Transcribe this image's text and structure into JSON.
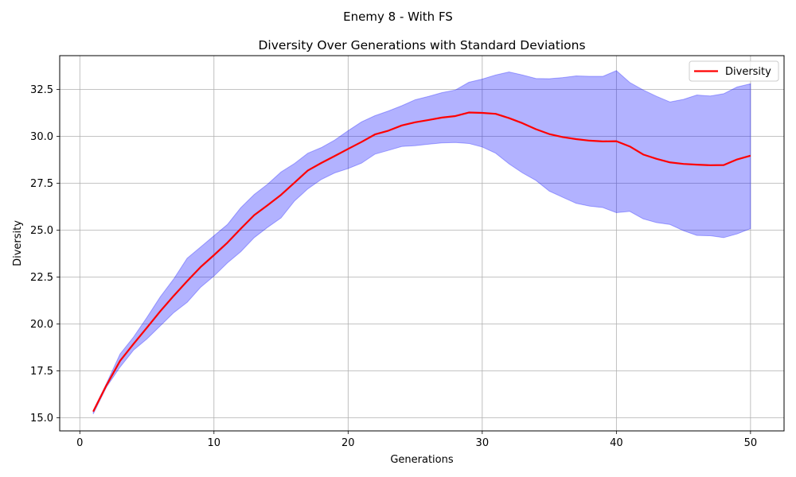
{
  "figure": {
    "suptitle": "Enemy 8 - With FS"
  },
  "colors": {
    "mean_line": "#ff0000",
    "std_band": "#0000ff",
    "grid": "#b0b0b0",
    "axes": "#000000"
  },
  "chart_data": {
    "type": "line",
    "title": "Diversity Over Generations with Standard Deviations",
    "xlabel": "Generations",
    "ylabel": "Diversity",
    "xlim": [
      -1.5,
      52.5
    ],
    "ylim": [
      14.3,
      34.3
    ],
    "xticks": [
      0,
      10,
      20,
      30,
      40,
      50
    ],
    "yticks": [
      15.0,
      17.5,
      20.0,
      22.5,
      25.0,
      27.5,
      30.0,
      32.5
    ],
    "xtick_labels": [
      "0",
      "10",
      "20",
      "30",
      "40",
      "50"
    ],
    "ytick_labels": [
      "15.0",
      "17.5",
      "20.0",
      "22.5",
      "25.0",
      "27.5",
      "30.0",
      "32.5"
    ],
    "grid": true,
    "legend": {
      "placement": "top-right",
      "entries": [
        "Diversity"
      ]
    },
    "x": [
      1,
      2,
      3,
      4,
      5,
      6,
      7,
      8,
      9,
      10,
      11,
      12,
      13,
      14,
      15,
      16,
      17,
      18,
      19,
      20,
      21,
      22,
      23,
      24,
      25,
      26,
      27,
      28,
      29,
      30,
      31,
      32,
      33,
      34,
      35,
      36,
      37,
      38,
      39,
      40,
      41,
      42,
      43,
      44,
      45,
      46,
      47,
      48,
      49,
      50
    ],
    "series": [
      {
        "name": "Diversity",
        "values": [
          15.33,
          16.75,
          18.03,
          18.93,
          19.8,
          20.68,
          21.5,
          22.28,
          23.03,
          23.67,
          24.33,
          25.08,
          25.8,
          26.33,
          26.88,
          27.53,
          28.18,
          28.58,
          28.95,
          29.33,
          29.7,
          30.1,
          30.3,
          30.58,
          30.75,
          30.87,
          31.0,
          31.08,
          31.27,
          31.25,
          31.2,
          30.97,
          30.7,
          30.38,
          30.12,
          29.96,
          29.85,
          29.77,
          29.73,
          29.74,
          29.46,
          29.03,
          28.8,
          28.61,
          28.53,
          28.49,
          28.46,
          28.47,
          28.77,
          28.97
        ]
      }
    ],
    "band": {
      "upper": [
        15.4,
        16.85,
        18.4,
        19.3,
        20.35,
        21.45,
        22.4,
        23.5,
        24.1,
        24.7,
        25.3,
        26.2,
        26.9,
        27.45,
        28.1,
        28.55,
        29.1,
        29.4,
        29.8,
        30.3,
        30.77,
        31.1,
        31.35,
        31.63,
        31.95,
        32.13,
        32.33,
        32.47,
        32.88,
        33.05,
        33.27,
        33.43,
        33.27,
        33.08,
        33.07,
        33.13,
        33.22,
        33.2,
        33.2,
        33.5,
        32.87,
        32.47,
        32.13,
        31.83,
        31.97,
        32.2,
        32.15,
        32.27,
        32.63,
        32.8
      ],
      "lower": [
        15.2,
        16.65,
        17.7,
        18.6,
        19.2,
        19.9,
        20.6,
        21.15,
        21.95,
        22.55,
        23.25,
        23.85,
        24.6,
        25.15,
        25.65,
        26.55,
        27.2,
        27.7,
        28.05,
        28.28,
        28.57,
        29.05,
        29.25,
        29.46,
        29.5,
        29.58,
        29.65,
        29.67,
        29.62,
        29.43,
        29.1,
        28.53,
        28.05,
        27.65,
        27.08,
        26.75,
        26.43,
        26.28,
        26.2,
        25.93,
        26.0,
        25.6,
        25.4,
        25.3,
        24.97,
        24.72,
        24.7,
        24.6,
        24.8,
        25.08
      ]
    }
  }
}
